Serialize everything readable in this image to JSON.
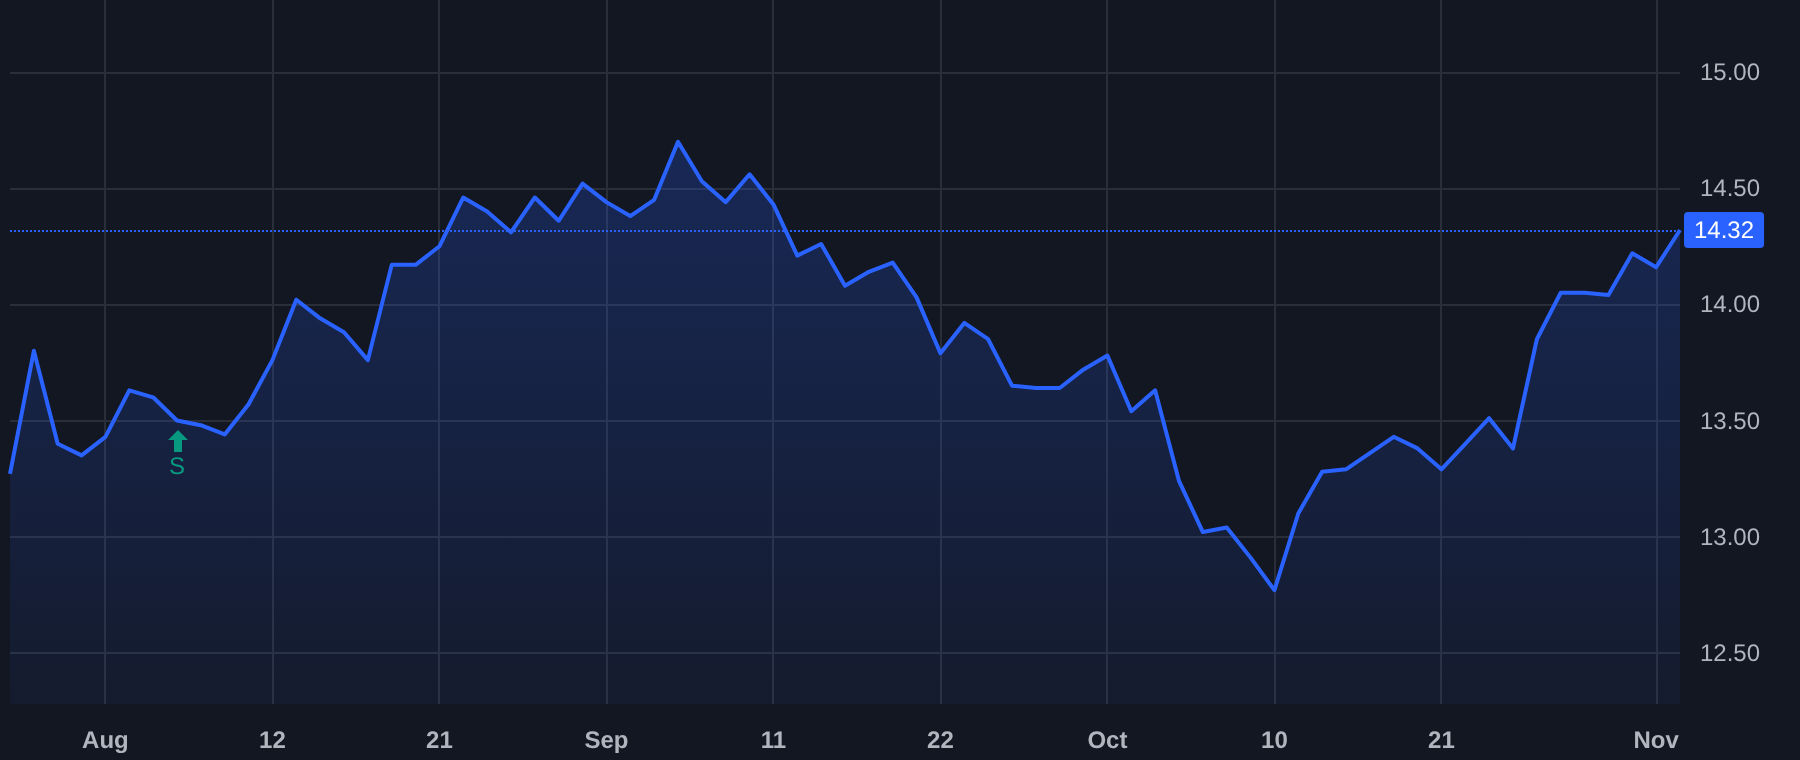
{
  "chart_data": {
    "type": "area",
    "categories": [
      null,
      null,
      null,
      null,
      "Aug",
      null,
      null,
      null,
      null,
      null,
      null,
      "12",
      null,
      null,
      null,
      null,
      null,
      null,
      "21",
      null,
      null,
      null,
      null,
      null,
      null,
      "Sep",
      null,
      null,
      null,
      null,
      null,
      null,
      "11",
      null,
      null,
      null,
      null,
      null,
      null,
      "22",
      null,
      null,
      null,
      null,
      null,
      null,
      "Oct",
      null,
      null,
      null,
      null,
      null,
      null,
      "10",
      null,
      null,
      null,
      null,
      null,
      null,
      "21",
      null,
      null,
      null,
      null,
      null,
      null,
      null,
      null,
      "Nov",
      null
    ],
    "series": [
      {
        "color": "#2962ff",
        "values": [
          13.27,
          13.8,
          13.4,
          13.35,
          13.43,
          13.63,
          13.6,
          13.5,
          13.48,
          13.44,
          13.57,
          13.76,
          14.02,
          13.94,
          13.88,
          13.76,
          14.17,
          14.17,
          14.25,
          14.46,
          14.4,
          14.31,
          14.46,
          14.36,
          14.52,
          14.44,
          14.38,
          14.45,
          14.7,
          14.53,
          14.44,
          14.56,
          14.43,
          14.21,
          14.26,
          14.08,
          14.14,
          14.18,
          14.03,
          13.79,
          13.92,
          13.85,
          13.65,
          13.64,
          13.64,
          13.72,
          13.78,
          13.54,
          13.63,
          13.24,
          13.02,
          13.04,
          12.91,
          12.77,
          13.1,
          13.28,
          13.29,
          13.36,
          13.43,
          13.38,
          13.29,
          13.4,
          13.51,
          13.38,
          13.85,
          14.05,
          14.05,
          14.04,
          14.22,
          14.16,
          14.32
        ]
      }
    ],
    "ylim": [
      12.28,
      15.31
    ],
    "yticks": [
      {
        "value": 12.5,
        "label": "12.50"
      },
      {
        "value": 13,
        "label": "13.00"
      },
      {
        "value": 13.5,
        "label": "13.50"
      },
      {
        "value": 14,
        "label": "14.00"
      },
      {
        "value": 14.5,
        "label": "14.50"
      },
      {
        "value": 15,
        "label": "15.00"
      }
    ],
    "ref_lines": [
      {
        "axis": "y",
        "value": 14.32,
        "label": "14.32",
        "color": "#2962ff",
        "line_style": "dotted"
      }
    ],
    "annotations": [
      "S"
    ],
    "grid": true,
    "marker": "none",
    "line_style": "solid"
  }
}
